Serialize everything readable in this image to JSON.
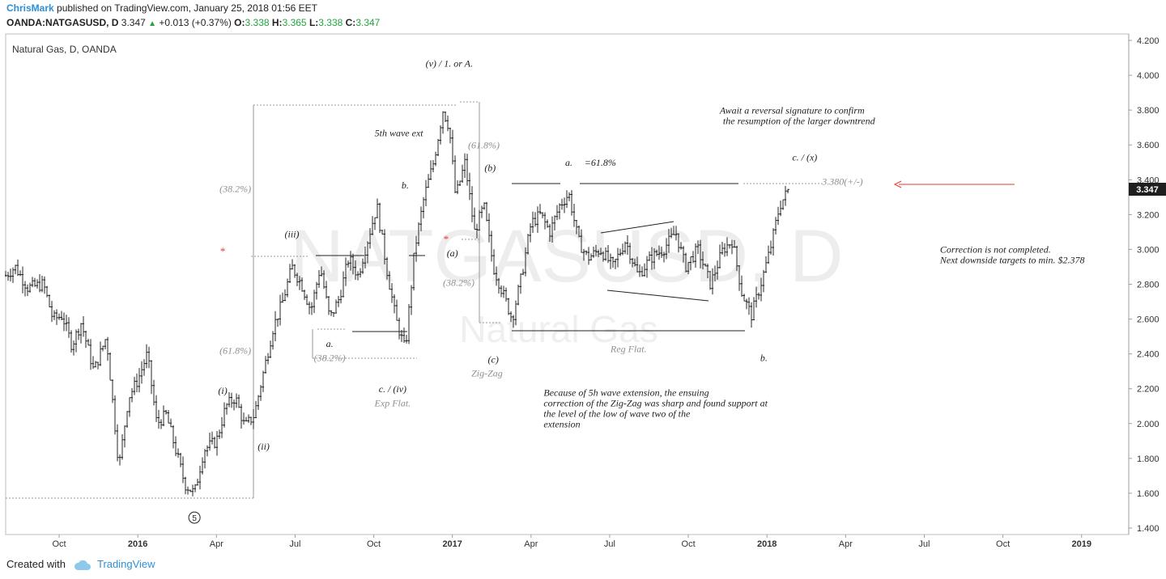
{
  "header": {
    "author": "ChrisMark",
    "published_text": " published on TradingView.com, January 25, 2018 01:56 EET",
    "symbol": "OANDA:NATGASUSD, D",
    "last": "3.347",
    "change": "+0.013 (+0.37%)",
    "o_label": "O:",
    "o_value": "3.338",
    "h_label": "H:",
    "h_value": "3.365",
    "l_label": "L:",
    "l_value": "3.338",
    "c_label": "C:",
    "c_value": "3.347"
  },
  "footer": {
    "created_with": "Created with",
    "brand": "TradingView"
  },
  "colors": {
    "up": "#21a53d",
    "brand": "#2d8fd6",
    "arrow": "#e53935",
    "candle": "#262626"
  },
  "chart_data": {
    "type": "candlestick",
    "title": "Natural Gas, D, OANDA",
    "watermark_symbol": "NATGASUSD, D",
    "watermark_name": "Natural Gas",
    "current_price_label": "3.347",
    "ylim": [
      1.4,
      4.2
    ],
    "yticks": [
      "1.400",
      "1.600",
      "1.800",
      "2.000",
      "2.200",
      "2.400",
      "2.600",
      "2.800",
      "3.000",
      "3.200",
      "3.400",
      "3.600",
      "3.800",
      "4.000",
      "4.200"
    ],
    "xlim": [
      2015.58,
      2019.15
    ],
    "xticks": [
      {
        "label": "Oct",
        "x": 2015.75,
        "bold": false
      },
      {
        "label": "2016",
        "x": 2016.0,
        "bold": true
      },
      {
        "label": "Apr",
        "x": 2016.25,
        "bold": false
      },
      {
        "label": "Jul",
        "x": 2016.5,
        "bold": false
      },
      {
        "label": "Oct",
        "x": 2016.75,
        "bold": false
      },
      {
        "label": "2017",
        "x": 2017.0,
        "bold": true
      },
      {
        "label": "Apr",
        "x": 2017.25,
        "bold": false
      },
      {
        "label": "Jul",
        "x": 2017.5,
        "bold": false
      },
      {
        "label": "Oct",
        "x": 2017.75,
        "bold": false
      },
      {
        "label": "2018",
        "x": 2018.0,
        "bold": true
      },
      {
        "label": "Apr",
        "x": 2018.25,
        "bold": false
      },
      {
        "label": "Jul",
        "x": 2018.5,
        "bold": false
      },
      {
        "label": "Oct",
        "x": 2018.75,
        "bold": false
      },
      {
        "label": "2019",
        "x": 2019.0,
        "bold": true
      }
    ],
    "price_path": [
      [
        2015.58,
        2.85
      ],
      [
        2015.61,
        2.9
      ],
      [
        2015.65,
        2.78
      ],
      [
        2015.7,
        2.8
      ],
      [
        2015.73,
        2.6
      ],
      [
        2015.76,
        2.62
      ],
      [
        2015.79,
        2.45
      ],
      [
        2015.82,
        2.58
      ],
      [
        2015.86,
        2.3
      ],
      [
        2015.9,
        2.5
      ],
      [
        2015.94,
        1.75
      ],
      [
        2015.97,
        2.15
      ],
      [
        2016.0,
        2.25
      ],
      [
        2016.03,
        2.4
      ],
      [
        2016.06,
        2.0
      ],
      [
        2016.09,
        2.05
      ],
      [
        2016.12,
        1.85
      ],
      [
        2016.15,
        1.65
      ],
      [
        2016.18,
        1.6
      ],
      [
        2016.21,
        1.85
      ],
      [
        2016.25,
        1.9
      ],
      [
        2016.28,
        2.1
      ],
      [
        2016.31,
        2.15
      ],
      [
        2016.34,
        1.98
      ],
      [
        2016.37,
        2.05
      ],
      [
        2016.4,
        2.3
      ],
      [
        2016.43,
        2.55
      ],
      [
        2016.46,
        2.7
      ],
      [
        2016.49,
        2.9
      ],
      [
        2016.52,
        2.8
      ],
      [
        2016.55,
        2.65
      ],
      [
        2016.58,
        2.9
      ],
      [
        2016.61,
        2.6
      ],
      [
        2016.64,
        2.72
      ],
      [
        2016.67,
        2.95
      ],
      [
        2016.7,
        2.85
      ],
      [
        2016.73,
        3.05
      ],
      [
        2016.76,
        3.25
      ],
      [
        2016.79,
        2.9
      ],
      [
        2016.82,
        2.6
      ],
      [
        2016.85,
        2.42
      ],
      [
        2016.88,
        3.0
      ],
      [
        2016.91,
        3.3
      ],
      [
        2016.94,
        3.5
      ],
      [
        2016.97,
        3.8
      ],
      [
        2016.99,
        3.7
      ],
      [
        2017.01,
        3.3
      ],
      [
        2017.04,
        3.5
      ],
      [
        2017.07,
        3.1
      ],
      [
        2017.1,
        3.25
      ],
      [
        2017.13,
        2.9
      ],
      [
        2017.16,
        2.75
      ],
      [
        2017.19,
        2.6
      ],
      [
        2017.22,
        2.85
      ],
      [
        2017.25,
        3.15
      ],
      [
        2017.28,
        3.2
      ],
      [
        2017.31,
        3.1
      ],
      [
        2017.34,
        3.25
      ],
      [
        2017.37,
        3.32
      ],
      [
        2017.4,
        3.05
      ],
      [
        2017.43,
        2.95
      ],
      [
        2017.47,
        3.0
      ],
      [
        2017.51,
        2.9
      ],
      [
        2017.55,
        3.05
      ],
      [
        2017.59,
        2.85
      ],
      [
        2017.63,
        2.95
      ],
      [
        2017.67,
        3.0
      ],
      [
        2017.71,
        3.1
      ],
      [
        2017.74,
        2.9
      ],
      [
        2017.78,
        3.0
      ],
      [
        2017.82,
        2.8
      ],
      [
        2017.86,
        3.0
      ],
      [
        2017.89,
        3.05
      ],
      [
        2017.92,
        2.75
      ],
      [
        2017.95,
        2.62
      ],
      [
        2017.98,
        2.8
      ],
      [
        2018.01,
        3.0
      ],
      [
        2018.04,
        3.25
      ],
      [
        2018.07,
        3.35
      ]
    ],
    "annotations": [
      {
        "text": "(v) / 1. or A.",
        "x": 2016.99,
        "y": 4.05,
        "style": "italic"
      },
      {
        "text": "5th wave ext",
        "x": 2016.83,
        "y": 3.65,
        "style": "italic"
      },
      {
        "text": "(61.8%)",
        "x": 2017.1,
        "y": 3.58,
        "style": "gray"
      },
      {
        "text": "(b)",
        "x": 2017.12,
        "y": 3.45,
        "style": "italic"
      },
      {
        "text": "a.",
        "x": 2017.37,
        "y": 3.48,
        "style": "italic"
      },
      {
        "text": "=61.8%",
        "x": 2017.47,
        "y": 3.48,
        "style": "italic"
      },
      {
        "text": "b.",
        "x": 2016.85,
        "y": 3.35,
        "style": "italic"
      },
      {
        "text": "(38.2%)",
        "x": 2016.31,
        "y": 3.33,
        "style": "gray"
      },
      {
        "text": "(iii)",
        "x": 2016.49,
        "y": 3.07,
        "style": "italic"
      },
      {
        "text": "*",
        "x": 2016.27,
        "y": 2.97,
        "style": "red"
      },
      {
        "text": "*",
        "x": 2016.98,
        "y": 3.04,
        "style": "red"
      },
      {
        "text": "(a)",
        "x": 2017.0,
        "y": 2.96,
        "style": "italic"
      },
      {
        "text": "(38.2%)",
        "x": 2017.02,
        "y": 2.79,
        "style": "gray"
      },
      {
        "text": "a.",
        "x": 2016.61,
        "y": 2.44,
        "style": "italic"
      },
      {
        "text": "(38.2%)",
        "x": 2016.61,
        "y": 2.36,
        "style": "gray"
      },
      {
        "text": "(61.8%)",
        "x": 2016.31,
        "y": 2.4,
        "style": "gray"
      },
      {
        "text": "(c)",
        "x": 2017.13,
        "y": 2.35,
        "style": "italic"
      },
      {
        "text": "Zig-Zag",
        "x": 2017.11,
        "y": 2.27,
        "style": "gray"
      },
      {
        "text": "c. / (iv)",
        "x": 2016.81,
        "y": 2.18,
        "style": "italic"
      },
      {
        "text": "Exp Flat.",
        "x": 2016.81,
        "y": 2.1,
        "style": "gray"
      },
      {
        "text": "(i)",
        "x": 2016.27,
        "y": 2.17,
        "style": "italic"
      },
      {
        "text": "(ii)",
        "x": 2016.4,
        "y": 1.85,
        "style": "italic"
      },
      {
        "text": "Reg Flat.",
        "x": 2017.56,
        "y": 2.41,
        "style": "gray"
      },
      {
        "text": "b.",
        "x": 2017.99,
        "y": 2.36,
        "style": "italic"
      },
      {
        "text": "c. / (x)",
        "x": 2018.12,
        "y": 3.51,
        "style": "italic"
      },
      {
        "text": "3.380(+/-)",
        "x": 2018.24,
        "y": 3.37,
        "style": "gray"
      }
    ],
    "notes": [
      {
        "lines": [
          "Await a reversal signature to confirm",
          "the resumption of the larger downtrend"
        ],
        "x": 2017.85,
        "y": 3.78
      },
      {
        "lines": [
          "Correction is not completed.",
          "Next downside targets to min. $2.378"
        ],
        "x": 2018.55,
        "y": 2.98
      },
      {
        "lines": [
          "Because of 5h wave extension, the ensuing",
          "correction of the Zig-Zag was sharp and found support at",
          "the level of the low of wave two of the",
          "extension"
        ],
        "x": 2017.29,
        "y": 2.16
      }
    ],
    "wave_label": {
      "text": "5",
      "x": 2016.18,
      "y": 1.46
    }
  }
}
